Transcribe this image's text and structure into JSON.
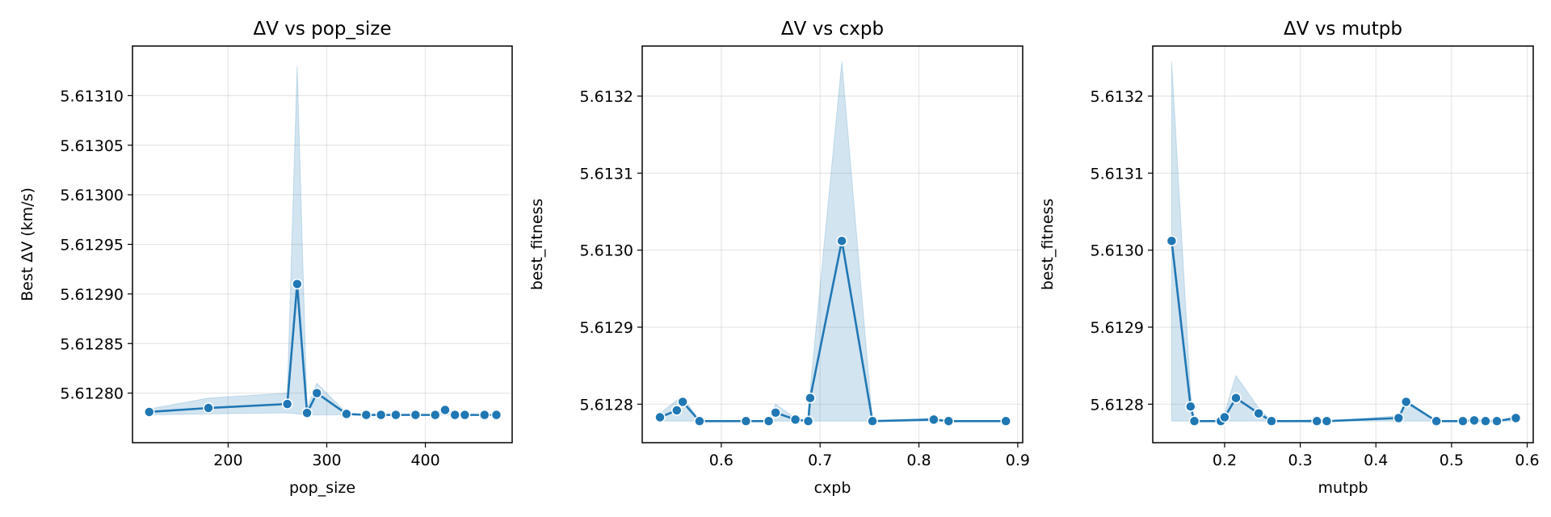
{
  "chart_data": [
    {
      "type": "line",
      "title": "ΔV vs pop_size",
      "xlabel": "pop_size",
      "ylabel": "Best ΔV (km/s)",
      "xlim": [
        103,
        488
      ],
      "ylim": [
        5.61275,
        5.61315
      ],
      "xticks": [
        200,
        300,
        400
      ],
      "xtick_labels": [
        "200",
        "300",
        "400"
      ],
      "yticks": [
        5.6128,
        5.61285,
        5.6129,
        5.61295,
        5.613,
        5.61305,
        5.6131
      ],
      "ytick_labels": [
        "5.61280",
        "5.61285",
        "5.61290",
        "5.61295",
        "5.61300",
        "5.61305",
        "5.61310"
      ],
      "grid": true,
      "series": [
        {
          "color": "#1f77b4",
          "x": [
            120,
            180,
            260,
            270,
            280,
            290,
            320,
            340,
            355,
            370,
            390,
            410,
            420,
            430,
            440,
            460,
            472
          ],
          "y": [
            5.612781,
            5.612785,
            5.612789,
            5.61291,
            5.61278,
            5.6128,
            5.612779,
            5.612778,
            5.612778,
            5.612778,
            5.612778,
            5.612778,
            5.612783,
            5.612778,
            5.612778,
            5.612778,
            5.612778
          ],
          "ci_low": [
            5.612778,
            5.612779,
            5.61278,
            5.612779,
            5.612778,
            5.612778,
            5.612778,
            5.612778,
            5.612778,
            5.612778,
            5.612778,
            5.612778,
            5.612778,
            5.612778,
            5.612778,
            5.612778,
            5.612778
          ],
          "ci_high": [
            5.612784,
            5.612795,
            5.6128,
            5.61313,
            5.612785,
            5.61281,
            5.61278,
            5.612778,
            5.612778,
            5.612778,
            5.612778,
            5.612778,
            5.612788,
            5.612778,
            5.612778,
            5.612778,
            5.612778
          ]
        }
      ]
    },
    {
      "type": "line",
      "title": "ΔV vs cxpb",
      "xlabel": "cxpb",
      "ylabel": "best_fitness",
      "xlim": [
        0.52,
        0.905
      ],
      "ylim": [
        5.61275,
        5.613265
      ],
      "xticks": [
        0.6,
        0.7,
        0.8,
        0.9
      ],
      "xtick_labels": [
        "0.6",
        "0.7",
        "0.8",
        "0.9"
      ],
      "yticks": [
        5.6128,
        5.6129,
        5.613,
        5.6131,
        5.6132
      ],
      "ytick_labels": [
        "5.6128",
        "5.6129",
        "5.6130",
        "5.6131",
        "5.6132"
      ],
      "grid": true,
      "series": [
        {
          "color": "#1f77b4",
          "x": [
            0.538,
            0.555,
            0.561,
            0.578,
            0.625,
            0.648,
            0.655,
            0.675,
            0.688,
            0.69,
            0.722,
            0.753,
            0.815,
            0.83,
            0.888
          ],
          "y": [
            5.612783,
            5.612792,
            5.612803,
            5.612778,
            5.612778,
            5.612778,
            5.612789,
            5.61278,
            5.612778,
            5.612808,
            5.613012,
            5.612778,
            5.61278,
            5.612778,
            5.612778
          ],
          "ci_low": [
            5.612778,
            5.612778,
            5.612778,
            5.612778,
            5.612778,
            5.612778,
            5.612778,
            5.612778,
            5.612778,
            5.612778,
            5.612778,
            5.612778,
            5.612778,
            5.612778,
            5.612778
          ],
          "ci_high": [
            5.612788,
            5.612805,
            5.61281,
            5.612778,
            5.612778,
            5.612778,
            5.6128,
            5.612782,
            5.612778,
            5.61282,
            5.613245,
            5.612778,
            5.612782,
            5.612778,
            5.612778
          ]
        }
      ]
    },
    {
      "type": "line",
      "title": "ΔV vs mutpb",
      "xlabel": "mutpb",
      "ylabel": "best_fitness",
      "xlim": [
        0.105,
        0.608
      ],
      "ylim": [
        5.61275,
        5.613265
      ],
      "xticks": [
        0.2,
        0.3,
        0.4,
        0.5,
        0.6
      ],
      "xtick_labels": [
        "0.2",
        "0.3",
        "0.4",
        "0.5",
        "0.6"
      ],
      "yticks": [
        5.6128,
        5.6129,
        5.613,
        5.6131,
        5.6132
      ],
      "ytick_labels": [
        "5.6128",
        "5.6129",
        "5.6130",
        "5.6131",
        "5.6132"
      ],
      "grid": true,
      "series": [
        {
          "color": "#1f77b4",
          "x": [
            0.13,
            0.155,
            0.16,
            0.195,
            0.2,
            0.215,
            0.245,
            0.262,
            0.322,
            0.335,
            0.43,
            0.44,
            0.48,
            0.515,
            0.53,
            0.545,
            0.56,
            0.585
          ],
          "y": [
            5.613012,
            5.612797,
            5.612778,
            5.612778,
            5.612783,
            5.612808,
            5.612788,
            5.612778,
            5.612778,
            5.612778,
            5.612782,
            5.612803,
            5.612778,
            5.612778,
            5.612779,
            5.612778,
            5.612778,
            5.612782
          ],
          "ci_low": [
            5.612778,
            5.612778,
            5.612778,
            5.612778,
            5.612778,
            5.612778,
            5.612778,
            5.612778,
            5.612778,
            5.612778,
            5.612778,
            5.612778,
            5.612778,
            5.612778,
            5.612778,
            5.612778,
            5.612778,
            5.612778
          ],
          "ci_high": [
            5.613245,
            5.612815,
            5.612778,
            5.612778,
            5.612788,
            5.612837,
            5.612795,
            5.612778,
            5.61278,
            5.612778,
            5.612785,
            5.612805,
            5.612778,
            5.612778,
            5.612782,
            5.612778,
            5.612778,
            5.612784
          ]
        }
      ]
    }
  ]
}
